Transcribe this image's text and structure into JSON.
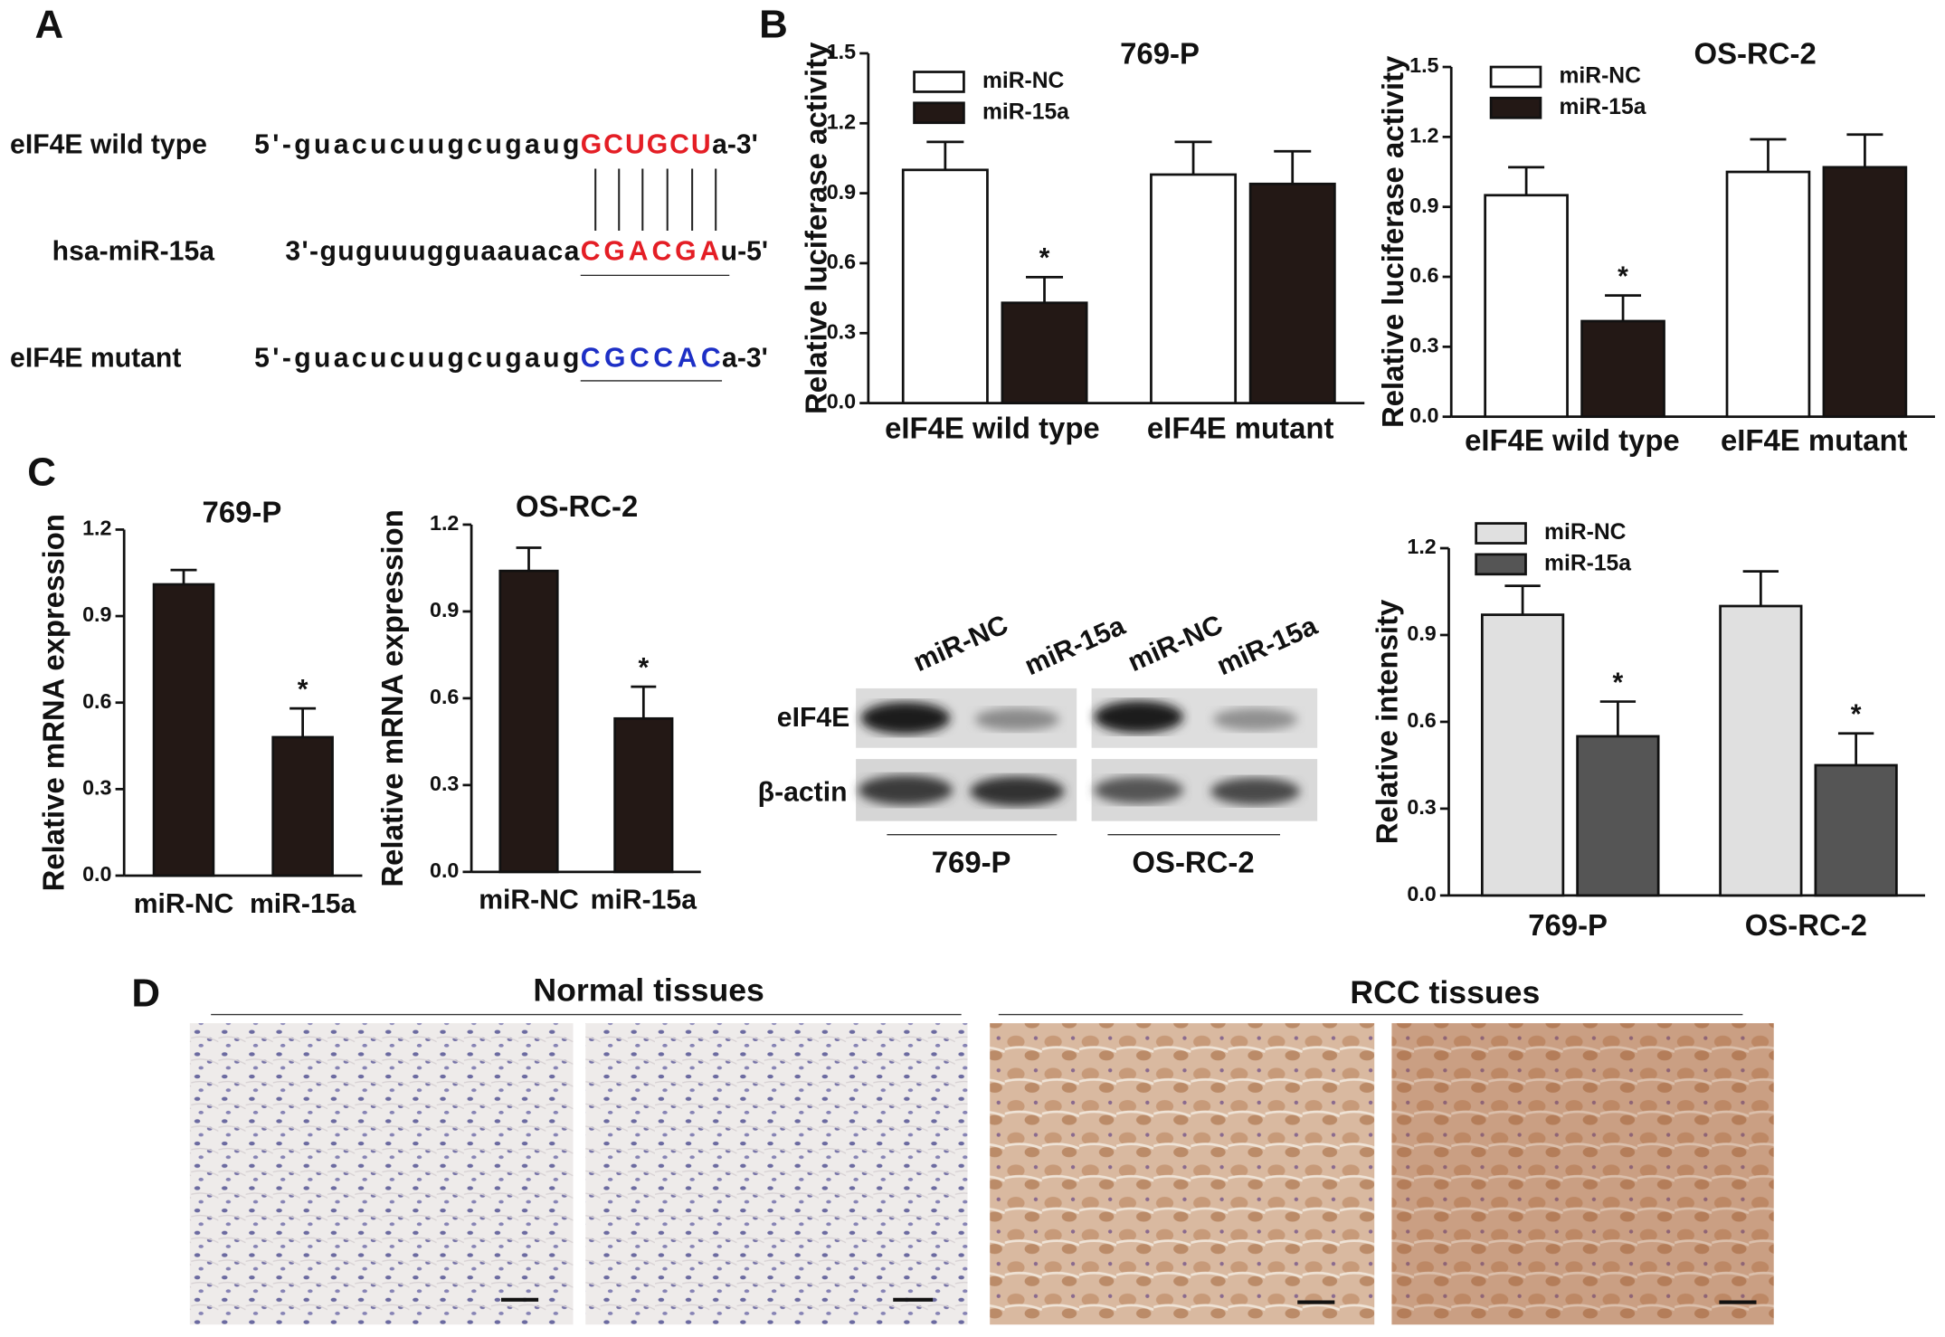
{
  "panel_labels": [
    "A",
    "B",
    "C",
    "D"
  ],
  "alignment": {
    "rows": [
      {
        "name": "eIF4E wild type",
        "sequence": "5'-guacucuugcugaug",
        "site": "GCUGCU",
        "end": "a-3'"
      },
      {
        "name": "hsa-miR-15a",
        "sequence": "3'-guguuugguaauaca",
        "site": "CGACGA",
        "end": "u-5'"
      },
      {
        "name": "eIF4E mutant",
        "sequence": "5'-guacucuugcugaug",
        "site": "CGCCAC",
        "end": "a-3'"
      }
    ]
  },
  "chart_data": [
    {
      "type": "bar",
      "title": "769-P",
      "y_label": "Relative luciferase activity",
      "categories": [
        "eIF4E wild type",
        "eIF4E mutant"
      ],
      "series": [
        {
          "name": "miR-NC",
          "color": "#ffffff",
          "values": [
            1.0,
            0.98
          ],
          "errors": [
            0.12,
            0.14
          ],
          "labels": [
            null,
            null
          ]
        },
        {
          "name": "miR-15a",
          "color": "#231815",
          "values": [
            0.43,
            0.94
          ],
          "errors": [
            0.11,
            0.14
          ],
          "labels": [
            "*",
            null
          ]
        }
      ],
      "ylim": [
        0,
        1.5
      ],
      "yticks": [
        {
          "value": 0,
          "label": "0.0"
        },
        0.3,
        0.6,
        0.9,
        1.2,
        1.5
      ],
      "legend": "upper-left"
    },
    {
      "type": "bar",
      "title": "OS-RC-2",
      "y_label": "Relative luciferase activity",
      "categories": [
        "eIF4E wild type",
        "eIF4E mutant"
      ],
      "series": [
        {
          "name": "miR-NC",
          "color": "#ffffff",
          "values": [
            0.95,
            1.05
          ],
          "errors": [
            0.12,
            0.14
          ],
          "labels": [
            null,
            null
          ]
        },
        {
          "name": "miR-15a",
          "color": "#231815",
          "values": [
            0.41,
            1.07
          ],
          "errors": [
            0.11,
            0.14
          ],
          "labels": [
            "*",
            null
          ]
        }
      ],
      "ylim": [
        0,
        1.5
      ],
      "yticks": [
        {
          "value": 0,
          "label": "0.0"
        },
        0.3,
        0.6,
        0.9,
        1.2,
        1.5
      ],
      "legend": "upper-left"
    },
    {
      "type": "bar",
      "title": "769-P",
      "y_label": "Relative  mRNA expression",
      "categories": [
        "miR-NC",
        "miR-15a"
      ],
      "series": [
        {
          "color": "#231815",
          "values": [
            1.01,
            0.48
          ],
          "errors": [
            0.05,
            0.1
          ],
          "labels": [
            null,
            "*"
          ]
        }
      ],
      "ylim": [
        0,
        1.2
      ],
      "yticks": [
        {
          "value": 0,
          "label": "0.0"
        },
        0.3,
        0.6,
        0.9,
        1.2
      ]
    },
    {
      "type": "bar",
      "title": "OS-RC-2",
      "y_label": "Relative  mRNA expression",
      "categories": [
        "miR-NC",
        "miR-15a"
      ],
      "series": [
        {
          "color": "#231815",
          "values": [
            1.04,
            0.53
          ],
          "errors": [
            0.08,
            0.11
          ],
          "labels": [
            null,
            "*"
          ]
        }
      ],
      "ylim": [
        0,
        1.2
      ],
      "yticks": [
        {
          "value": 0,
          "label": "0.0"
        },
        0.3,
        0.6,
        0.9,
        1.2
      ]
    },
    {
      "type": "bar",
      "y_label": "Relative intensity",
      "categories": [
        "769-P",
        "OS-RC-2"
      ],
      "series": [
        {
          "name": "miR-NC",
          "color": "#e0e0e0",
          "values": [
            0.97,
            1.0
          ],
          "errors": [
            0.1,
            0.12
          ],
          "labels": [
            null,
            null
          ]
        },
        {
          "name": "miR-15a",
          "color": "#555555",
          "values": [
            0.55,
            0.45
          ],
          "errors": [
            0.12,
            0.11
          ],
          "labels": [
            "*",
            "*"
          ]
        }
      ],
      "ylim": [
        0,
        1.2
      ],
      "yticks": [
        {
          "value": 0,
          "label": "0.0"
        },
        0.3,
        0.6,
        0.9,
        1.2
      ],
      "legend": "upper-left"
    }
  ],
  "blot": {
    "lanes": [
      "miR-NC",
      "miR-15a",
      "miR-NC",
      "miR-15a"
    ],
    "rows": [
      "eIF4E",
      "β-actin"
    ],
    "groups": [
      "769-P",
      "OS-RC-2"
    ]
  },
  "tissues": {
    "groups": [
      "Normal tissues",
      "RCC tissues"
    ]
  }
}
